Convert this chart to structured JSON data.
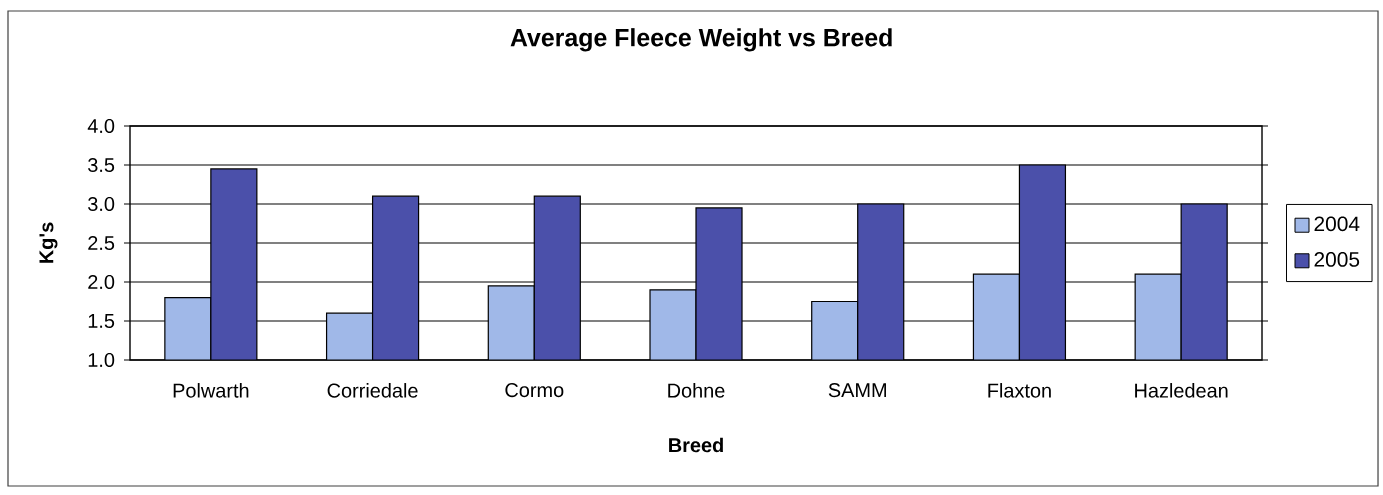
{
  "chart_data": {
    "type": "bar",
    "title": "Average Fleece Weight vs Breed",
    "xlabel": "Breed",
    "ylabel": "Kg's",
    "categories": [
      "Polwarth",
      "Corriedale",
      "Cormo",
      "Dohne",
      "SAMM",
      "Flaxton",
      "Hazledean"
    ],
    "series": [
      {
        "name": "2004",
        "color": "#a0b8e8",
        "values": [
          1.8,
          1.6,
          1.95,
          1.9,
          1.75,
          2.1,
          2.1
        ]
      },
      {
        "name": "2005",
        "color": "#4b50aa",
        "values": [
          3.45,
          3.1,
          3.1,
          2.95,
          3.0,
          3.5,
          3.0
        ]
      }
    ],
    "ylim": [
      1.0,
      4.0
    ],
    "yticks": [
      {
        "value": 1.0,
        "label": "1.0"
      },
      {
        "value": 1.5,
        "label": "1.5"
      },
      {
        "value": 2.0,
        "label": "2.0"
      },
      {
        "value": 2.5,
        "label": "2.5"
      },
      {
        "value": 3.0,
        "label": "3.0"
      },
      {
        "value": 3.5,
        "label": "3.5"
      },
      {
        "value": 4.0,
        "label": "4.0"
      }
    ],
    "grid": "y",
    "legend": "right"
  }
}
